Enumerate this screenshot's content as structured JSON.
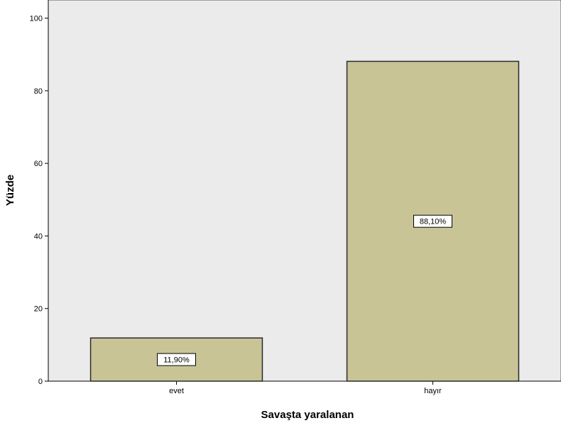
{
  "chart_data": {
    "type": "bar",
    "title": "",
    "xlabel": "Savaşta yaralanan",
    "ylabel": "Yüzde",
    "categories": [
      "evet",
      "hayır"
    ],
    "values": [
      11.9,
      88.1
    ],
    "data_labels": [
      "11,90%",
      "88,10%"
    ],
    "ylim": [
      0,
      105
    ],
    "yticks": [
      0,
      20,
      40,
      60,
      80,
      100
    ],
    "ytick_labels": [
      "0",
      "20",
      "40",
      "60",
      "80",
      "100"
    ],
    "grid": false,
    "legend": "none",
    "bar_color": "#c8c496",
    "bar_stroke": "#2b2b2b",
    "plot_background": "#ebebeb"
  }
}
